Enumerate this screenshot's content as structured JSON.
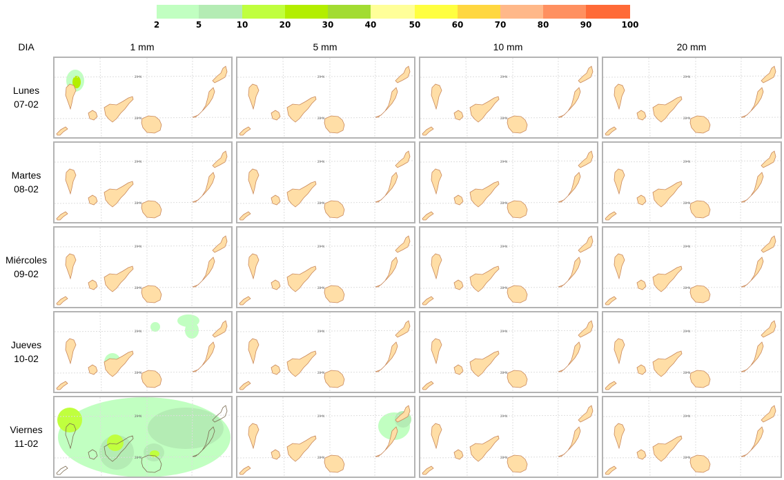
{
  "legend": {
    "colors": [
      "#c1ffc1",
      "#b4ecb4",
      "#c0ff3e",
      "#b3ee00",
      "#a2dc32",
      "#ffff99",
      "#ffff40",
      "#ffd740",
      "#ffb889",
      "#ff9060",
      "#ff6a37"
    ],
    "ticks": [
      "2",
      "5",
      "10",
      "20",
      "30",
      "40",
      "50",
      "60",
      "70",
      "80",
      "90",
      "100"
    ]
  },
  "header": {
    "dia": "DIA"
  },
  "columns": [
    "1 mm",
    "5 mm",
    "10 mm",
    "20 mm"
  ],
  "rows": [
    {
      "day": "Lunes",
      "date": "07-02"
    },
    {
      "day": "Martes",
      "date": "08-02"
    },
    {
      "day": "Miércoles",
      "date": "09-02"
    },
    {
      "day": "Jueves",
      "date": "10-02"
    },
    {
      "day": "Viernes",
      "date": "11-02"
    }
  ],
  "map": {
    "land_color": "#ffdea6",
    "coast_color": "#c8875a",
    "grid_color": "#dddddd",
    "grid_labels": [
      "29ºN",
      "28ºN"
    ]
  }
}
